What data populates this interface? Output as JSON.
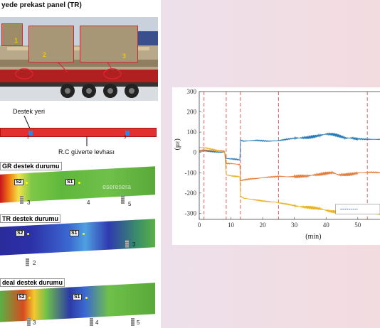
{
  "left_panel": {
    "title": "yede prekast panel (TR)",
    "callouts": [
      "1",
      "2",
      "3"
    ],
    "support_label": "Destek yeri",
    "deck_label": "R.C güverte levhası",
    "support_tags": [
      "2",
      "3"
    ],
    "cases": [
      {
        "title": "GR destek durumu",
        "sensors": [
          "S2",
          "S1"
        ],
        "supports": [
          "3",
          "4",
          "5"
        ],
        "watermark": "eseresera"
      },
      {
        "title": "TR destek durumu",
        "sensors": [
          "S2",
          "S1"
        ],
        "supports": [
          "2",
          "3"
        ]
      },
      {
        "title": "deal destek durumu",
        "sensors": [
          "S2",
          "S1"
        ],
        "supports": [
          "3",
          "4",
          "5"
        ]
      }
    ]
  },
  "chart_data": {
    "type": "line",
    "xlabel": "(min)",
    "ylabel": "(με)",
    "xlim": [
      0,
      57
    ],
    "ylim": [
      -330,
      300
    ],
    "xticks": [
      0,
      10,
      20,
      30,
      40,
      50
    ],
    "yticks": [
      300,
      200,
      100,
      0,
      -100,
      -200,
      -300
    ],
    "event_lines_x": [
      1.5,
      8.5,
      13,
      25,
      53
    ],
    "series": [
      {
        "color": "#1f77b4",
        "x": [
          0,
          2,
          4,
          6,
          8,
          8.5,
          10,
          12,
          12.8,
          13,
          14,
          16,
          18,
          20,
          22,
          24,
          25,
          28,
          30,
          32,
          34,
          36,
          38,
          40,
          42,
          44,
          46,
          48,
          50,
          52,
          54,
          57
        ],
        "y": [
          5,
          8,
          5,
          2,
          0,
          -30,
          -32,
          -35,
          -38,
          60,
          55,
          58,
          60,
          58,
          56,
          57,
          58,
          65,
          70,
          72,
          75,
          80,
          85,
          90,
          88,
          80,
          70,
          72,
          68,
          66,
          65,
          64
        ]
      },
      {
        "color": "#e07b39",
        "x": [
          0,
          2,
          4,
          6,
          8,
          8.5,
          10,
          12,
          12.8,
          13,
          14,
          16,
          18,
          20,
          22,
          24,
          25,
          28,
          30,
          32,
          34,
          36,
          38,
          40,
          42,
          44,
          46,
          48,
          50,
          52,
          54,
          57
        ],
        "y": [
          10,
          12,
          10,
          8,
          5,
          -55,
          -55,
          -58,
          -60,
          -140,
          -135,
          -130,
          -128,
          -125,
          -122,
          -120,
          -118,
          -120,
          -118,
          -115,
          -115,
          -112,
          -110,
          -105,
          -100,
          -110,
          -108,
          -105,
          -100,
          -100,
          -98,
          -100
        ]
      },
      {
        "color": "#e8b01c",
        "x": [
          0,
          2,
          4,
          6,
          8,
          8.5,
          10,
          12,
          12.8,
          13,
          14,
          16,
          18,
          20,
          22,
          24,
          25,
          28,
          30,
          32,
          34,
          36,
          38,
          40,
          42,
          44,
          46,
          48,
          50,
          52,
          54,
          57
        ],
        "y": [
          25,
          22,
          15,
          8,
          0,
          -110,
          -115,
          -118,
          -120,
          -215,
          -225,
          -230,
          -235,
          -240,
          -243,
          -245,
          -248,
          -255,
          -262,
          -268,
          -272,
          -275,
          -278,
          -285,
          -290,
          -292,
          -288,
          -285,
          -290,
          -295,
          -300,
          -305
        ]
      }
    ]
  }
}
